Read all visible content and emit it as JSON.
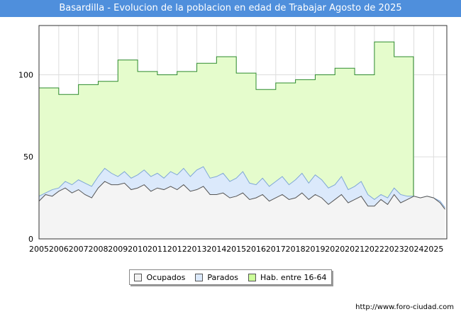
{
  "title": "Basardilla - Evolucion de la poblacion en edad de Trabajar Agosto de 2025",
  "footer_url": "http://www.foro-ciudad.com",
  "legend": [
    {
      "label": "Ocupados",
      "color": "#f2f2f2"
    },
    {
      "label": "Parados",
      "color": "#dbe9fb"
    },
    {
      "label": "Hab. entre 16-64",
      "color": "#ccff99"
    }
  ],
  "chart_data": {
    "type": "area",
    "title": "Basardilla - Evolucion de la poblacion en edad de Trabajar Agosto de 2025",
    "xlabel": "",
    "ylabel": "",
    "xlim": [
      2005,
      2025.67
    ],
    "ylim": [
      0,
      130
    ],
    "yticks": [
      0,
      50,
      100
    ],
    "xticks": [
      "2005",
      "2006",
      "2007",
      "2008",
      "2009",
      "2010",
      "2011",
      "2012",
      "2013",
      "2014",
      "2015",
      "2016",
      "2017",
      "2018",
      "2019",
      "2020",
      "2021",
      "2022",
      "2023",
      "2024",
      "2025"
    ],
    "grid": true,
    "legend_position": "bottom",
    "colors": {
      "hab_fill": "#e5fccc",
      "hab_line": "#2e8b2e",
      "parados_fill": "#dbe9fb",
      "parados_line": "#7fa7d6",
      "ocupados_fill": "#f4f4f4",
      "ocupados_line": "#555555"
    },
    "series": [
      {
        "name": "Hab. entre 16-64",
        "x": [
          2005,
          2006,
          2007,
          2008,
          2009,
          2010,
          2011,
          2012,
          2013,
          2014,
          2015,
          2016,
          2017,
          2018,
          2019,
          2020,
          2021,
          2022,
          2023
        ],
        "values": [
          92,
          88,
          94,
          96,
          109,
          102,
          100,
          102,
          107,
          111,
          101,
          91,
          95,
          97,
          100,
          104,
          100,
          120,
          111
        ]
      },
      {
        "name": "Parados",
        "x": [
          2005.0,
          2005.33,
          2005.67,
          2006.0,
          2006.33,
          2006.67,
          2007.0,
          2007.33,
          2007.67,
          2008.0,
          2008.33,
          2008.67,
          2009.0,
          2009.33,
          2009.67,
          2010.0,
          2010.33,
          2010.67,
          2011.0,
          2011.33,
          2011.67,
          2012.0,
          2012.33,
          2012.67,
          2013.0,
          2013.33,
          2013.67,
          2014.0,
          2014.33,
          2014.67,
          2015.0,
          2015.33,
          2015.67,
          2016.0,
          2016.33,
          2016.67,
          2017.0,
          2017.33,
          2017.67,
          2018.0,
          2018.33,
          2018.67,
          2019.0,
          2019.33,
          2019.67,
          2020.0,
          2020.33,
          2020.67,
          2021.0,
          2021.33,
          2021.67,
          2022.0,
          2022.33,
          2022.67,
          2023.0,
          2023.33,
          2023.67,
          2024.0,
          2024.33,
          2024.67,
          2025.0,
          2025.33,
          2025.58
        ],
        "values": [
          26,
          28,
          30,
          31,
          35,
          33,
          36,
          34,
          32,
          38,
          43,
          40,
          38,
          41,
          37,
          39,
          42,
          38,
          40,
          37,
          41,
          39,
          43,
          38,
          42,
          44,
          37,
          38,
          40,
          35,
          37,
          41,
          34,
          33,
          37,
          32,
          35,
          38,
          33,
          36,
          40,
          34,
          39,
          36,
          31,
          33,
          38,
          30,
          32,
          35,
          27,
          24,
          27,
          25,
          31,
          27,
          26,
          26,
          25,
          26,
          25,
          23,
          19
        ]
      },
      {
        "name": "Ocupados",
        "x": [
          2005.0,
          2005.33,
          2005.67,
          2006.0,
          2006.33,
          2006.67,
          2007.0,
          2007.33,
          2007.67,
          2008.0,
          2008.33,
          2008.67,
          2009.0,
          2009.33,
          2009.67,
          2010.0,
          2010.33,
          2010.67,
          2011.0,
          2011.33,
          2011.67,
          2012.0,
          2012.33,
          2012.67,
          2013.0,
          2013.33,
          2013.67,
          2014.0,
          2014.33,
          2014.67,
          2015.0,
          2015.33,
          2015.67,
          2016.0,
          2016.33,
          2016.67,
          2017.0,
          2017.33,
          2017.67,
          2018.0,
          2018.33,
          2018.67,
          2019.0,
          2019.33,
          2019.67,
          2020.0,
          2020.33,
          2020.67,
          2021.0,
          2021.33,
          2021.67,
          2022.0,
          2022.33,
          2022.67,
          2023.0,
          2023.33,
          2023.67,
          2024.0,
          2024.33,
          2024.67,
          2025.0,
          2025.33,
          2025.58
        ],
        "values": [
          23,
          27,
          26,
          29,
          31,
          28,
          30,
          27,
          25,
          31,
          35,
          33,
          33,
          34,
          30,
          31,
          33,
          29,
          31,
          30,
          32,
          30,
          33,
          29,
          30,
          32,
          27,
          27,
          28,
          25,
          26,
          28,
          24,
          25,
          27,
          23,
          25,
          27,
          24,
          25,
          28,
          24,
          27,
          25,
          21,
          24,
          27,
          22,
          24,
          26,
          20,
          20,
          24,
          21,
          27,
          22,
          24,
          26,
          25,
          26,
          25,
          22,
          18
        ]
      }
    ]
  }
}
